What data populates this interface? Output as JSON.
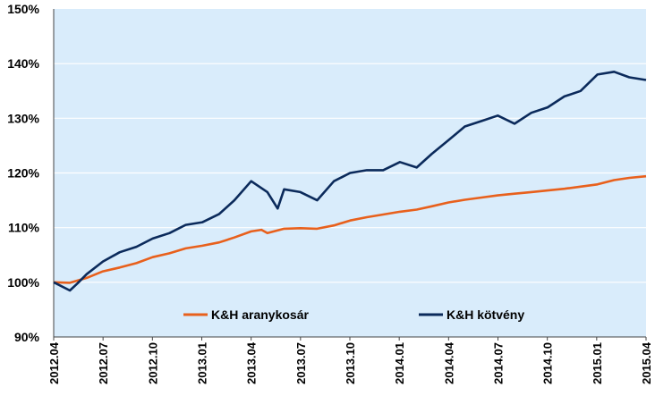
{
  "chart_data": {
    "type": "line",
    "x_labels": [
      "2012.04",
      "2012.07",
      "2012.10",
      "2013.01",
      "2013.04",
      "2013.07",
      "2013.10",
      "2014.01",
      "2014.04",
      "2014.07",
      "2014.10",
      "2015.01",
      "2015.04"
    ],
    "y_ticks": [
      "90%",
      "100%",
      "110%",
      "120%",
      "130%",
      "140%",
      "150%"
    ],
    "ylim": [
      90,
      150
    ],
    "grid": true,
    "legend_position": "lower-middle",
    "background_color": "#d9ecfb",
    "series": [
      {
        "name": "K&H aranykosár",
        "color": "#e8601c",
        "x": [
          "2012-04-01",
          "2012-05-01",
          "2012-06-01",
          "2012-07-01",
          "2012-08-01",
          "2012-09-01",
          "2012-10-01",
          "2012-11-01",
          "2012-12-01",
          "2013-01-01",
          "2013-02-01",
          "2013-03-01",
          "2013-04-01",
          "2013-04-20",
          "2013-05-01",
          "2013-06-01",
          "2013-07-01",
          "2013-08-01",
          "2013-09-01",
          "2013-10-01",
          "2013-11-01",
          "2013-12-01",
          "2014-01-01",
          "2014-02-01",
          "2014-03-01",
          "2014-04-01",
          "2014-05-01",
          "2014-06-01",
          "2014-07-01",
          "2014-08-01",
          "2014-09-01",
          "2014-10-01",
          "2014-11-01",
          "2014-12-01",
          "2015-01-01",
          "2015-02-01",
          "2015-03-01",
          "2015-04-01"
        ],
        "values": [
          100.0,
          99.9,
          100.8,
          102.0,
          102.7,
          103.5,
          104.6,
          105.3,
          106.2,
          106.7,
          107.3,
          108.2,
          109.3,
          109.6,
          109.0,
          109.8,
          109.9,
          109.8,
          110.4,
          111.3,
          111.9,
          112.4,
          112.9,
          113.3,
          113.9,
          114.6,
          115.1,
          115.5,
          115.9,
          116.2,
          116.5,
          116.8,
          117.1,
          117.5,
          117.9,
          118.7,
          119.1,
          119.4
        ]
      },
      {
        "name": "K&H kötvény",
        "color": "#0b2a5b",
        "x": [
          "2012-04-01",
          "2012-05-01",
          "2012-05-15",
          "2012-06-01",
          "2012-07-01",
          "2012-08-01",
          "2012-09-01",
          "2012-10-01",
          "2012-11-01",
          "2012-12-01",
          "2013-01-01",
          "2013-02-01",
          "2013-03-01",
          "2013-04-01",
          "2013-05-01",
          "2013-05-20",
          "2013-06-01",
          "2013-07-01",
          "2013-08-01",
          "2013-09-01",
          "2013-10-01",
          "2013-11-01",
          "2013-12-01",
          "2014-01-01",
          "2014-02-01",
          "2014-03-01",
          "2014-04-01",
          "2014-05-01",
          "2014-06-01",
          "2014-07-01",
          "2014-08-01",
          "2014-09-01",
          "2014-10-01",
          "2014-11-01",
          "2014-12-01",
          "2015-01-01",
          "2015-02-01",
          "2015-03-01",
          "2015-04-01"
        ],
        "values": [
          100.0,
          98.5,
          99.8,
          101.5,
          103.8,
          105.5,
          106.5,
          108.0,
          109.0,
          110.5,
          111.0,
          112.5,
          115.0,
          118.5,
          116.5,
          113.5,
          117.0,
          116.5,
          115.0,
          118.5,
          120.0,
          120.5,
          120.5,
          122.0,
          121.0,
          123.5,
          126.0,
          128.5,
          129.5,
          130.5,
          129.0,
          131.0,
          132.0,
          134.0,
          135.0,
          138.0,
          138.5,
          137.5,
          137.0
        ]
      }
    ]
  }
}
